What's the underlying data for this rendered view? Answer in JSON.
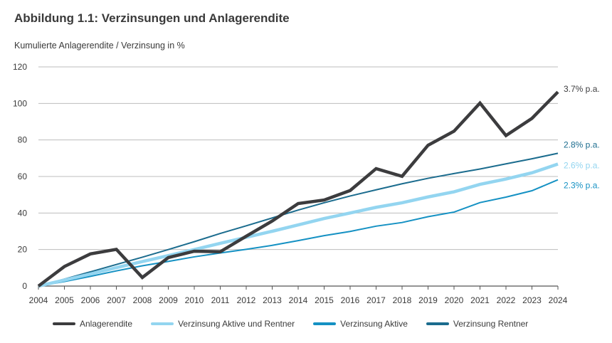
{
  "title": "Abbildung 1.1: Verzinsungen und Anlagerendite",
  "subtitle": "Kumulierte Anlagerendite / Verzinsung in %",
  "chart_data": {
    "type": "line",
    "x": [
      2004,
      2005,
      2006,
      2007,
      2008,
      2009,
      2010,
      2011,
      2012,
      2013,
      2014,
      2015,
      2016,
      2017,
      2018,
      2019,
      2020,
      2021,
      2022,
      2023,
      2024
    ],
    "x_tick_labels": [
      "2004",
      "2005",
      "2006",
      "2007",
      "2008",
      "2009",
      "2010",
      "2011",
      "2012",
      "2013",
      "2014",
      "2015",
      "2016",
      "2017",
      "2018",
      "2019",
      "2020",
      "2021",
      "2022",
      "2023",
      "2024"
    ],
    "y_tick_labels": [
      "0",
      "20",
      "40",
      "60",
      "80",
      "100",
      "120"
    ],
    "ylim": [
      0,
      120
    ],
    "y_ticks": [
      0,
      20,
      40,
      60,
      80,
      100,
      120
    ],
    "grid": true,
    "legend_position": "bottom",
    "series": [
      {
        "name": "Anlagerendite",
        "color": "#3c3c3e",
        "width": 4.5,
        "end_label": "3.7% p.a.",
        "end_label_color": "#3c3c3e",
        "values": [
          0,
          10.7,
          17.6,
          20.1,
          4.7,
          15.6,
          19.1,
          18.8,
          27.3,
          35.6,
          45.2,
          47.1,
          52.3,
          64.3,
          60.1,
          77.1,
          84.8,
          100.2,
          82.4,
          91.8,
          106.3
        ]
      },
      {
        "name": "Verzinsung Aktive und Rentner",
        "color": "#93d5f0",
        "width": 4.5,
        "end_label": "2.6% p.a.",
        "end_label_color": "#93d5f0",
        "values": [
          0,
          3.3,
          6.6,
          10.1,
          13.4,
          16.7,
          20.0,
          23.4,
          26.7,
          30.0,
          33.5,
          37.0,
          40.0,
          43.1,
          45.6,
          48.8,
          51.6,
          55.7,
          58.6,
          62.0,
          66.8
        ]
      },
      {
        "name": "Verzinsung Aktive",
        "color": "#1591c3",
        "width": 2,
        "end_label": "2.3% p.a.",
        "end_label_color": "#1591c3",
        "values": [
          0,
          2.5,
          5.3,
          8.3,
          11.1,
          13.5,
          16.0,
          18.1,
          20.1,
          22.3,
          24.9,
          27.6,
          29.9,
          32.8,
          34.8,
          38.0,
          40.5,
          45.7,
          48.7,
          52.2,
          58.2
        ]
      },
      {
        "name": "Verzinsung Rentner",
        "color": "#1b6c8e",
        "width": 2,
        "end_label": "2.8% p.a.",
        "end_label_color": "#1b6c8e",
        "values": [
          0,
          3.8,
          7.8,
          11.8,
          15.8,
          20.0,
          24.3,
          28.8,
          33.0,
          37.3,
          41.6,
          45.6,
          49.3,
          52.7,
          56.0,
          59.0,
          61.6,
          64.1,
          66.9,
          69.7,
          72.7
        ]
      }
    ]
  }
}
